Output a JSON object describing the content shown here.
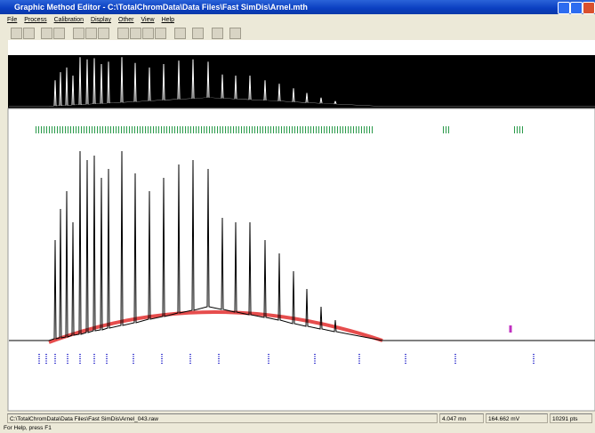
{
  "window": {
    "title": "Graphic Method Editor  - C:\\TotalChromData\\Data Files\\Fast SimDis\\Arnel.mth"
  },
  "menu": [
    "File",
    "Process",
    "Calibration",
    "Display",
    "Other",
    "View",
    "Help"
  ],
  "status_bar": {
    "file": "C:\\TotalChromData\\Data Files\\Fast SimDis\\Arnel_043.raw",
    "time": "4.047 mn",
    "signal": "164.662 mV",
    "points": "10291 pts"
  },
  "help_text": "For Help, press F1"
}
